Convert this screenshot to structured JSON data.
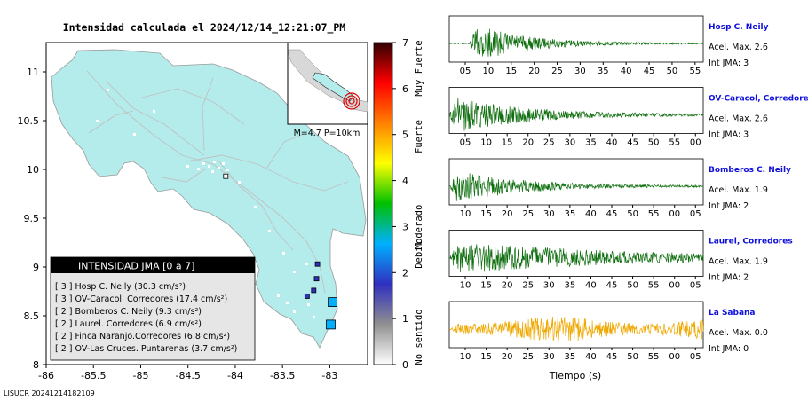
{
  "title": "Intensidad calculada el 2024/12/14_12:21:07_PM",
  "footer": "LISUCR 20241214182109",
  "map": {
    "x_ticks": [
      "-86",
      "-85.5",
      "-85",
      "-84.5",
      "-84",
      "-83.5",
      "-83"
    ],
    "y_ticks": [
      "11",
      "10.5",
      "10",
      "9.5",
      "9",
      "8.5",
      "8"
    ],
    "xlim": [
      -86,
      -82.6
    ],
    "ylim": [
      8,
      11.3
    ],
    "inset_label": "M=4.7 P=10km",
    "epicenter": {
      "lon": -82.88,
      "lat": 8.45
    },
    "stations": [
      {
        "name": "Hosp C. Neily",
        "lon": -82.97,
        "lat": 8.64,
        "intensity": 3
      },
      {
        "name": "OV-Caracol. Corredores",
        "lon": -82.99,
        "lat": 8.41,
        "intensity": 3
      },
      {
        "name": "Bomberos C. Neily",
        "lon": -83.14,
        "lat": 8.88,
        "intensity": 2
      },
      {
        "name": "Laurel. Corredores",
        "lon": -83.17,
        "lat": 8.76,
        "intensity": 2
      },
      {
        "name": "Finca Naranjo.Corredores",
        "lon": -83.13,
        "lat": 9.03,
        "intensity": 2
      },
      {
        "name": "OV-Las Cruces. Puntarenas",
        "lon": -83.24,
        "lat": 8.7,
        "intensity": 2
      },
      {
        "name": "La Sabana",
        "lon": -84.1,
        "lat": 9.93,
        "intensity": 0
      }
    ]
  },
  "legend": {
    "title": "INTENSIDAD JMA [0 a 7]",
    "items": [
      "[ 3 ]  Hosp C. Neily (30.3 cm/s²)",
      "[ 3 ]  OV-Caracol. Corredores (17.4 cm/s²)",
      "[ 2 ]  Bomberos C. Neily (9.3 cm/s²)",
      "[ 2 ]  Laurel. Corredores (6.9 cm/s²)",
      "[ 2 ]  Finca Naranjo.Corredores (6.8 cm/s²)",
      "[ 2 ]  OV-Las Cruces. Puntarenas (3.7 cm/s²)"
    ]
  },
  "colorbar": {
    "ticks": [
      "0",
      "1",
      "2",
      "3",
      "4",
      "5",
      "6",
      "7"
    ],
    "labels": [
      "No sentido",
      "Debil",
      "Moderado",
      "Fuerte",
      "Muy Fuerte"
    ],
    "colors": [
      "#ffffff",
      "#909090",
      "#3030c0",
      "#00b0ff",
      "#00c000",
      "#ffff00",
      "#ff8000",
      "#ff0000",
      "#300000"
    ]
  },
  "traces": [
    {
      "station": "Hosp C. Neily",
      "acel": "Acel. Max. 2.6",
      "int": "Int JMA: 3",
      "color": "#0e6e0e",
      "ticks": [
        "05",
        "10",
        "15",
        "20",
        "25",
        "30",
        "35",
        "40",
        "45",
        "50",
        "55"
      ],
      "onset": 0.08,
      "amp": 1.0,
      "decay": 5.0,
      "noise": 0.02
    },
    {
      "station": "OV-Caracol, Corredore",
      "acel": "Acel. Max. 2.6",
      "int": "Int JMA: 3",
      "color": "#0e6e0e",
      "ticks": [
        "05",
        "10",
        "15",
        "20",
        "25",
        "30",
        "35",
        "40",
        "45",
        "50",
        "55",
        "00"
      ],
      "onset": 0.0,
      "amp": 0.9,
      "decay": 3.5,
      "noise": 0.03
    },
    {
      "station": "Bomberos C. Neily",
      "acel": "Acel. Max. 1.9",
      "int": "Int JMA: 2",
      "color": "#0e6e0e",
      "ticks": [
        "10",
        "15",
        "20",
        "25",
        "30",
        "35",
        "40",
        "45",
        "50",
        "55",
        "00",
        "05"
      ],
      "onset": 0.0,
      "amp": 0.85,
      "decay": 4.0,
      "noise": 0.03
    },
    {
      "station": "Laurel, Corredores",
      "acel": "Acel. Max. 1.9",
      "int": "Int JMA: 2",
      "color": "#0e6e0e",
      "ticks": [
        "10",
        "15",
        "20",
        "25",
        "30",
        "35",
        "40",
        "45",
        "50",
        "55",
        "00",
        "05"
      ],
      "onset": 0.0,
      "amp": 0.75,
      "decay": 1.6,
      "noise": 0.06
    },
    {
      "station": "La Sabana",
      "acel": "Acel. Max. 0.0",
      "int": "Int JMA: 0",
      "color": "#f0a800",
      "ticks": [
        "10",
        "15",
        "20",
        "25",
        "30",
        "35",
        "40",
        "45",
        "50",
        "55",
        "00",
        "05"
      ],
      "onset": 0.0,
      "amp": 0.35,
      "decay": 0.0,
      "noise": 0.25
    }
  ],
  "xlabel": "Tiempo (s)"
}
